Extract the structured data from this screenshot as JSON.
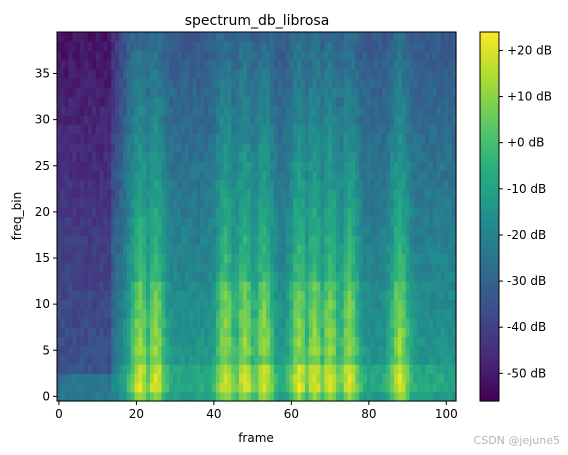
{
  "chart_data": {
    "type": "heatmap",
    "title": "spectrum_db_librosa",
    "xlabel": "frame",
    "ylabel": "freq_bin",
    "x_range": [
      0,
      102
    ],
    "y_range": [
      0,
      39
    ],
    "x_ticks": [
      "0",
      "20",
      "40",
      "60",
      "80",
      "100"
    ],
    "x_tick_values": [
      0,
      20,
      40,
      60,
      80,
      100
    ],
    "y_ticks": [
      "0",
      "5",
      "10",
      "15",
      "20",
      "25",
      "30",
      "35"
    ],
    "y_tick_values": [
      0,
      5,
      10,
      15,
      20,
      25,
      30,
      35
    ],
    "colorbar": {
      "colormap": "viridis",
      "range": [
        -56,
        24
      ],
      "ticks": [
        "-50 dB",
        "-40 dB",
        "-30 dB",
        "-20 dB",
        "-10 dB",
        "+0 dB",
        "+10 dB",
        "+20 dB"
      ],
      "tick_values": [
        -50,
        -40,
        -30,
        -20,
        -10,
        0,
        10,
        20
      ]
    },
    "silence_frames": [
      [
        0,
        14
      ]
    ],
    "voiced_peaks_frames": [
      21,
      25,
      43,
      48,
      53,
      62,
      66,
      70,
      75,
      88
    ],
    "watermark": "CSDN @jejune5"
  }
}
